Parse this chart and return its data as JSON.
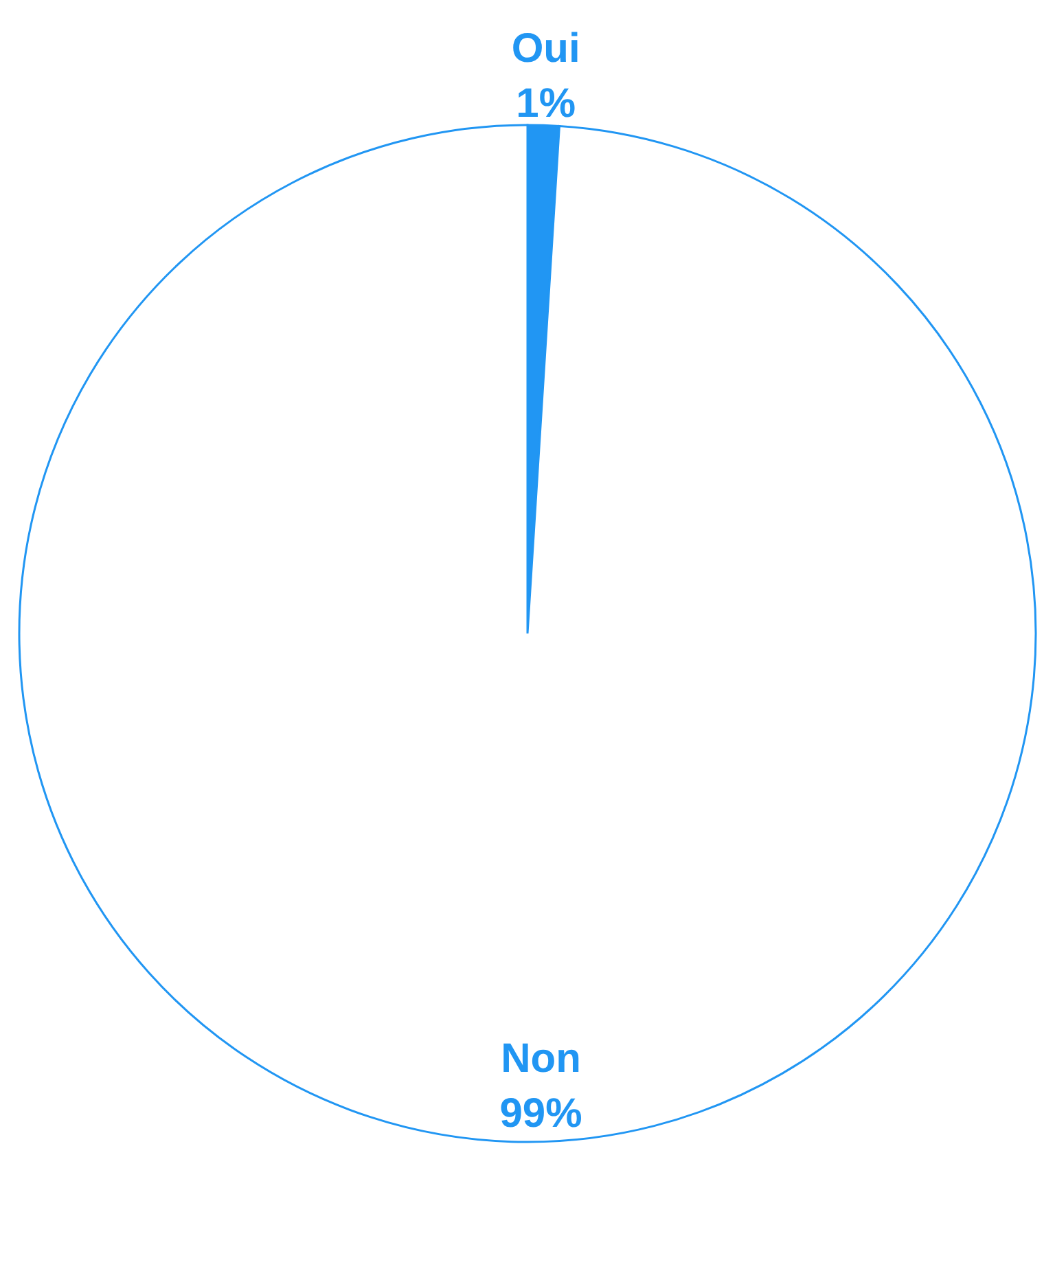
{
  "chart_data": {
    "type": "pie",
    "categories": [
      "Oui",
      "Non"
    ],
    "values": [
      1,
      99
    ],
    "value_labels": [
      "1%",
      "99%"
    ],
    "colors": [
      "#2196f3",
      "#ffffff"
    ]
  }
}
